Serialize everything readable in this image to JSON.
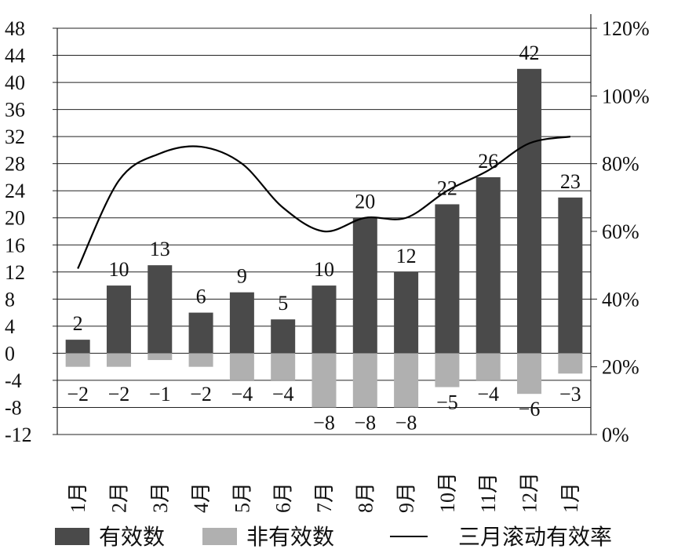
{
  "chart_data": {
    "type": "bar",
    "categories": [
      "1月",
      "2月",
      "3月",
      "4月",
      "5月",
      "6月",
      "7月",
      "8月",
      "9月",
      "10月",
      "11月",
      "12月",
      "1月"
    ],
    "series": [
      {
        "name": "有效数",
        "kind": "bar",
        "color": "#4a4a4a",
        "values": [
          2,
          10,
          13,
          6,
          9,
          5,
          10,
          20,
          12,
          22,
          26,
          42,
          23
        ]
      },
      {
        "name": "非有效数",
        "kind": "bar",
        "color": "#b0b0b0",
        "values": [
          -2,
          -2,
          -1,
          -2,
          -4,
          -4,
          -8,
          -8,
          -8,
          -5,
          -4,
          -6,
          -3
        ]
      },
      {
        "name": "三月滚动有效率",
        "kind": "line",
        "axis": "right",
        "color": "#000000",
        "values": [
          0.49,
          0.75,
          0.83,
          0.85,
          0.8,
          0.67,
          0.6,
          0.64,
          0.64,
          0.72,
          0.78,
          0.86,
          0.88
        ]
      }
    ],
    "y_left": {
      "min": -12,
      "max": 48,
      "ticks": [
        48,
        44,
        40,
        36,
        32,
        28,
        24,
        20,
        16,
        12,
        8,
        4,
        0,
        -4,
        -8,
        -12
      ],
      "tick_labels": [
        "48",
        "44",
        "40",
        "36",
        "32",
        "28",
        "24",
        "20",
        "16",
        "12",
        "8",
        "4",
        "0",
        "-4",
        "-8",
        "-12"
      ]
    },
    "y_right": {
      "min": 0,
      "max": 1.2,
      "ticks": [
        1.2,
        1.0,
        0.8,
        0.6,
        0.4,
        0.2,
        0.0
      ],
      "tick_labels": [
        "120%",
        "100%",
        "80%",
        "60%",
        "40%",
        "20%",
        "0%"
      ]
    },
    "pos_labels": [
      "2",
      "10",
      "13",
      "6",
      "9",
      "5",
      "10",
      "20",
      "12",
      "22",
      "26",
      "42",
      "23"
    ],
    "neg_labels": [
      "−2",
      "−2",
      "−1",
      "−2",
      "−4",
      "−4",
      "−8",
      "−8",
      "−8",
      "−5",
      "−4",
      "−6",
      "−3"
    ],
    "grid": true,
    "legend_position": "bottom"
  }
}
